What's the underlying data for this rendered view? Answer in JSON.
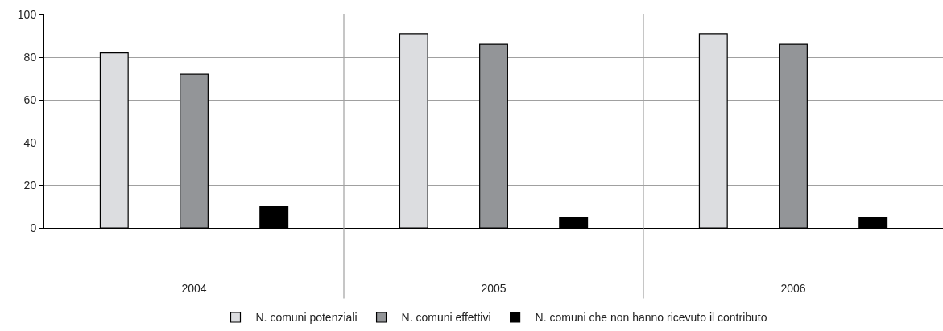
{
  "chart_data": {
    "type": "bar",
    "categories": [
      "2004",
      "2005",
      "2006"
    ],
    "series": [
      {
        "name": "N. comuni potenziali",
        "color": "#dcdde0",
        "values": [
          82,
          91,
          91
        ]
      },
      {
        "name": "N. comuni effettivi",
        "color": "#939598",
        "values": [
          72,
          86,
          86
        ]
      },
      {
        "name": "N. comuni che non hanno ricevuto il contributo",
        "color": "#000000",
        "values": [
          10,
          5,
          5
        ]
      }
    ],
    "ylim": [
      0,
      100
    ],
    "yticks": [
      0,
      20,
      40,
      60,
      80,
      100
    ],
    "grid": true,
    "legend": "bottom"
  }
}
